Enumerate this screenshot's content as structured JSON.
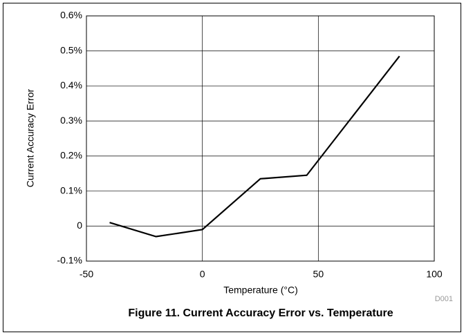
{
  "chart_data": {
    "type": "line",
    "title": "Figure 11. Current Accuracy Error vs. Temperature",
    "xlabel": "Temperature (°C)",
    "ylabel": "Current Accuracy Error",
    "annotation": "D001",
    "x": [
      -40,
      -20,
      0,
      25,
      45,
      85
    ],
    "series": [
      {
        "color": "#000000",
        "values": [
          0.01,
          -0.03,
          -0.01,
          0.135,
          0.145,
          0.485
        ]
      }
    ],
    "xlim": [
      -50,
      100
    ],
    "xticks": [
      -50,
      0,
      50,
      100
    ],
    "ylim": [
      -0.1,
      0.6
    ],
    "yticks": [
      {
        "value": -0.1,
        "label": "-0.1%"
      },
      0,
      {
        "value": 0.1,
        "label": "0.1%"
      },
      {
        "value": 0.2,
        "label": "0.2%"
      },
      {
        "value": 0.3,
        "label": "0.3%"
      },
      {
        "value": 0.4,
        "label": "0.4%"
      },
      {
        "value": 0.5,
        "label": "0.5%"
      },
      {
        "value": 0.6,
        "label": "0.6%"
      }
    ],
    "grid": true
  }
}
